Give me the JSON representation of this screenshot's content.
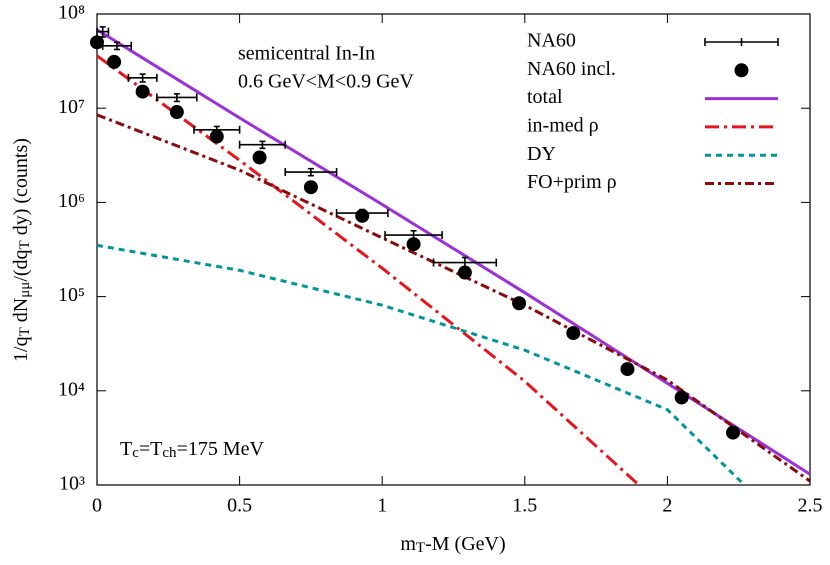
{
  "chart_data": {
    "type": "line",
    "ylog": true,
    "xlabel": [
      {
        "text": "m"
      },
      {
        "text": "T",
        "sub": true
      },
      {
        "text": "-M (GeV)"
      }
    ],
    "ylabel": [
      {
        "text": "1/q"
      },
      {
        "text": "T",
        "sub": true
      },
      {
        "text": " dN"
      },
      {
        "text": "μμ",
        "sub": true
      },
      {
        "text": "/(dq"
      },
      {
        "text": "T",
        "sub": true
      },
      {
        "text": " dy) (counts)"
      }
    ],
    "annotations": [
      "semicentral In-In",
      "0.6 GeV<M<0.9 GeV"
    ],
    "tc_annotation": [
      {
        "text": "T"
      },
      {
        "text": "c",
        "sub": true
      },
      {
        "text": "=T"
      },
      {
        "text": "ch",
        "sub": true
      },
      {
        "text": "=175 MeV"
      }
    ],
    "xlim": [
      0,
      2.5
    ],
    "xticks": [
      0,
      0.5,
      1,
      1.5,
      2,
      2.5
    ],
    "ylim": [
      1000,
      100000000
    ],
    "yticks": [
      {
        "value": 1000,
        "label": "10³"
      },
      {
        "value": 10000,
        "label": "10⁴"
      },
      {
        "value": 100000,
        "label": "10⁵"
      },
      {
        "value": 1000000,
        "label": "10⁶"
      },
      {
        "value": 10000000,
        "label": "10⁷"
      },
      {
        "value": 100000000,
        "label": "10⁸"
      }
    ],
    "legend": "top-right",
    "series": [
      {
        "name": "NA60",
        "kind": "errorbar",
        "color": "#000000",
        "x": [
          0.02,
          0.07,
          0.16,
          0.28,
          0.42,
          0.58,
          0.75,
          0.93,
          1.11,
          1.29
        ],
        "xerr": [
          0.02,
          0.05,
          0.05,
          0.07,
          0.08,
          0.08,
          0.09,
          0.09,
          0.1,
          0.11
        ],
        "values": [
          65000000,
          46000000,
          21000000,
          13000000,
          5900000,
          4100000,
          2100000,
          770000,
          450000,
          230000
        ],
        "yerr": [
          8000000,
          4000000,
          2000000,
          1200000,
          500000,
          350000,
          180000,
          70000,
          50000,
          30000
        ]
      },
      {
        "name": "NA60 incl.",
        "kind": "points",
        "color": "#000000",
        "x": [
          0.0,
          0.06,
          0.16,
          0.28,
          0.42,
          0.57,
          0.75,
          0.93,
          1.11,
          1.29,
          1.48,
          1.67,
          1.86,
          2.05,
          2.23
        ],
        "values": [
          50000000,
          31000000,
          15000000,
          9100000,
          5000000,
          3000000,
          1450000,
          720000,
          360000,
          180000,
          85000,
          41000,
          17000,
          8500,
          3600
        ]
      },
      {
        "name": "total",
        "kind": "line",
        "color": "#9b30d9",
        "dash": "none",
        "x": [
          0,
          0.5,
          1,
          1.5,
          2,
          2.5
        ],
        "values": [
          68000000,
          7900000,
          950000,
          110000,
          12000,
          1300
        ]
      },
      {
        "name": "in-med ρ",
        "kind": "line",
        "color": "#e8141c",
        "dash": "14,5,3,5",
        "x": [
          0,
          0.5,
          1,
          1.5,
          1.9
        ],
        "values": [
          36000000,
          2800000,
          200000,
          12600,
          1000
        ]
      },
      {
        "name": "DY",
        "kind": "line",
        "color": "#00959a",
        "dash": "6,5",
        "x": [
          0,
          0.5,
          1,
          1.5,
          2,
          2.27
        ],
        "values": [
          350000,
          190000,
          81000,
          27000,
          6300,
          1000
        ]
      },
      {
        "name": "FO+prim ρ",
        "kind": "line",
        "color": "#8b0a0a",
        "dash": "9,4,3,4",
        "x": [
          0,
          0.5,
          1,
          1.5,
          2,
          2.5
        ],
        "values": [
          8500000,
          2200000,
          420000,
          81000,
          13000,
          1100
        ]
      }
    ]
  }
}
